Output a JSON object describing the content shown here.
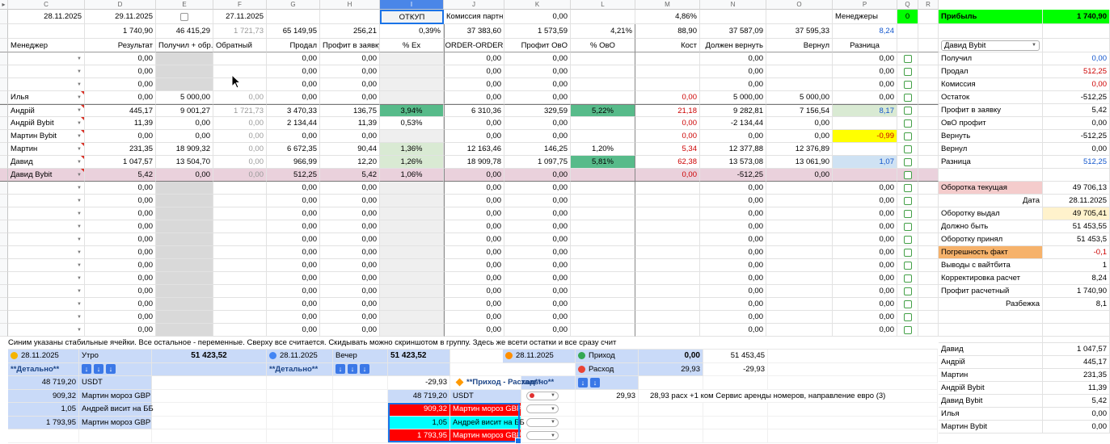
{
  "sheet": {
    "column_letters": [
      "C",
      "D",
      "E",
      "F",
      "G",
      "H",
      "I",
      "J",
      "K",
      "L",
      "M",
      "N",
      "O",
      "P",
      "Q",
      "R"
    ],
    "selected_column": "I",
    "colors": {
      "accent": "#1a73e8",
      "dark_green": "#57bb8a",
      "light_green": "#d9ead3",
      "bright_green": "#00ff00",
      "yellow": "#ffff00",
      "orange": "#f6b26b",
      "pink_row": "#ead1dc",
      "red_fill": "#ff0000",
      "cyan_fill": "#00ffff",
      "blue_fill": "#c9daf8"
    }
  },
  "grid": {
    "row_dates": {
      "c": "28.11.2025",
      "d": "29.11.2025",
      "f": "27.11.2025",
      "i": "ОТКУП",
      "j": "Комиссия партн",
      "k": "0,00",
      "m": "4,86%",
      "p": "Менеджеры",
      "q": "0"
    },
    "row_totals": [
      "1 740,90",
      "46 415,29",
      "1 721,73",
      "65 149,95",
      "256,21",
      "0,39%",
      "37 383,60",
      "1 573,59",
      "4,21%",
      "88,90",
      "37 587,09",
      "37 595,33",
      "8,24"
    ],
    "headers": [
      "Менеджер",
      "Результат",
      "Получил + обр.",
      "Обратный",
      "Продал",
      "Профит в заявку",
      "% Ex",
      "ORDER-ORDER",
      "Профит ОвО",
      "% ОвО",
      "Кост",
      "Должен вернуть",
      "Вернул",
      "Разница"
    ],
    "header_align": [
      "l",
      "r",
      "l",
      "l",
      "r",
      "l",
      "c",
      "c",
      "r",
      "c",
      "r",
      "r",
      "r",
      "c"
    ],
    "empty_row": {
      "name": "",
      "mark": false,
      "cls": "",
      "v": [
        "0,00",
        "",
        "",
        "0,00",
        "0,00",
        "",
        "0,00",
        "0,00",
        "",
        "",
        "0,00",
        "",
        "0,00"
      ],
      "s": [
        "",
        "egray",
        "",
        "",
        "",
        "igray",
        "",
        "",
        "",
        "",
        "",
        "",
        ""
      ]
    },
    "leading_empty_rows": 3,
    "trailing_empty_rows": 12,
    "rows": [
      {
        "name": "Илья",
        "mark": true,
        "cls": "",
        "v": [
          "0,00",
          "5 000,00",
          "0,00",
          "0,00",
          "0,00",
          "",
          "0,00",
          "0,00",
          "",
          "0,00",
          "5 000,00",
          "5 000,00",
          "0,00"
        ],
        "s": [
          "",
          "",
          "fgray",
          "",
          "",
          "igray",
          "",
          "",
          "",
          "mred",
          "",
          "",
          ""
        ]
      },
      {
        "name": "Андрій",
        "mark": true,
        "cls": "bt",
        "v": [
          "445,17",
          "9 001,27",
          "1 721,73",
          "3 470,33",
          "136,75",
          "3,94%",
          "6 310,36",
          "329,59",
          "5,22%",
          "21,18",
          "9 282,81",
          "7 156,54",
          "8,17"
        ],
        "s": [
          "",
          "",
          "fgray",
          "",
          "",
          "dkg",
          "",
          "",
          "dkg",
          "mred",
          "",
          "",
          "lg blue"
        ]
      },
      {
        "name": "Андрій Bybit",
        "mark": true,
        "cls": "",
        "v": [
          "11,39",
          "0,00",
          "0,00",
          "2 134,44",
          "11,39",
          "0,53%",
          "0,00",
          "0,00",
          "",
          "0,00",
          "-2 134,44",
          "0,00",
          ""
        ],
        "s": [
          "",
          "",
          "fgray",
          "",
          "",
          "",
          "",
          "",
          "",
          "mred",
          "",
          "",
          ""
        ]
      },
      {
        "name": "Мартин Bybit",
        "mark": true,
        "cls": "",
        "v": [
          "0,00",
          "0,00",
          "0,00",
          "0,00",
          "0,00",
          "",
          "0,00",
          "0,00",
          "",
          "0,00",
          "0,00",
          "0,00",
          "-0,99"
        ],
        "s": [
          "",
          "",
          "fgray",
          "",
          "",
          "igray",
          "",
          "",
          "",
          "mred",
          "",
          "",
          "yel redt"
        ]
      },
      {
        "name": "Мартин",
        "mark": true,
        "cls": "",
        "v": [
          "231,35",
          "18 909,32",
          "0,00",
          "6 672,35",
          "90,44",
          "1,36%",
          "12 163,46",
          "146,25",
          "1,20%",
          "5,34",
          "12 377,88",
          "12 376,89",
          ""
        ],
        "s": [
          "",
          "",
          "fgray",
          "",
          "",
          "lg",
          "",
          "",
          "",
          "mred",
          "",
          "",
          ""
        ]
      },
      {
        "name": "Давид",
        "mark": true,
        "cls": "",
        "v": [
          "1 047,57",
          "13 504,70",
          "0,00",
          "966,99",
          "12,20",
          "1,26%",
          "18 909,78",
          "1 097,75",
          "5,81%",
          "62,38",
          "13 573,08",
          "13 061,90",
          "1,07"
        ],
        "s": [
          "",
          "",
          "fgray",
          "",
          "",
          "lg",
          "",
          "",
          "dkg",
          "mred",
          "",
          "",
          "lb blue"
        ]
      },
      {
        "name": "Давид Bybit",
        "mark": true,
        "cls": "pinkrow bb",
        "v": [
          "5,42",
          "0,00",
          "0,00",
          "512,25",
          "5,42",
          "1,06%",
          "0,00",
          "0,00",
          "",
          "0,00",
          "-512,25",
          "0,00",
          ""
        ],
        "s": [
          "",
          "",
          "fgray",
          "",
          "",
          "",
          "",
          "",
          "",
          "mred",
          "",
          "",
          ""
        ]
      }
    ]
  },
  "panel": {
    "profit": {
      "label": "Прибыль",
      "value": "1 740,90"
    },
    "selector": {
      "value": "Давид Bybit"
    },
    "stats": [
      {
        "label": "Получил",
        "value": "0,00",
        "vs": "blue"
      },
      {
        "label": "Продал",
        "value": "512,25",
        "vs": "redt"
      },
      {
        "label": "Комиссия",
        "value": "0,00",
        "vs": "redt"
      },
      {
        "label": "Остаток",
        "value": "-512,25",
        "vs": ""
      },
      {
        "label": "Профит в заявку",
        "value": "5,42",
        "vs": ""
      },
      {
        "label": "ОвО профит",
        "value": "0,00",
        "vs": ""
      },
      {
        "label": "Вернуть",
        "value": "-512,25",
        "vs": ""
      },
      {
        "label": "Вернул",
        "value": "0,00",
        "vs": ""
      },
      {
        "label": "Разница",
        "value": "512,25",
        "vs": "blue"
      }
    ],
    "summary": [
      {
        "label": "Оборотка текущая",
        "value": "49 706,13",
        "ls": "pinkl",
        "vs": ""
      },
      {
        "label": "Дата",
        "value": "28.11.2025",
        "ls": "rightl",
        "vs": ""
      },
      {
        "label": "Оборотку выдал",
        "value": "49 705,41",
        "ls": "",
        "vs": "cream"
      },
      {
        "label": "Должно быть",
        "value": "51 453,55",
        "ls": "",
        "vs": ""
      },
      {
        "label": "Оборотку принял",
        "value": "51 453,5",
        "ls": "",
        "vs": ""
      },
      {
        "label": "Погрешность факт",
        "value": "-0,1",
        "ls": "orange",
        "vs": "yel redt"
      },
      {
        "label": "Выводы с вайтбита",
        "value": "1",
        "ls": "yel",
        "vs": ""
      },
      {
        "label": "Корректировка расчет",
        "value": "8,24",
        "ls": "yel",
        "vs": ""
      },
      {
        "label": "Профит расчетный",
        "value": "1 740,90",
        "ls": "yel",
        "vs": ""
      },
      {
        "label": "Разбежка",
        "value": "8,1",
        "ls": "rightl",
        "vs": ""
      }
    ],
    "managers": [
      {
        "label": "Давид",
        "value": "1 047,57"
      },
      {
        "label": "Андрій",
        "value": "445,17"
      },
      {
        "label": "Мартин",
        "value": "231,35"
      },
      {
        "label": "Андрій Bybit",
        "value": "11,39"
      },
      {
        "label": "Давид Bybit",
        "value": "5,42"
      },
      {
        "label": "Илья",
        "value": "0,00"
      },
      {
        "label": "Мартин Bybit",
        "value": "0,00"
      }
    ]
  },
  "note": "Синим указаны стабильные ячейки. Все остальное - переменные. Сверху все считается. Скидывать можно скриншотом в группу. Здесь же всети остатки и все сразу счит",
  "bottom": {
    "morning": {
      "date": "28.11.2025",
      "title": "Утро",
      "total": "51 423,52",
      "detail_label": "**Детально**",
      "arrow_count": 3,
      "items": [
        {
          "num": "48 719,20",
          "desc": "USDT"
        },
        {
          "num": "909,32",
          "desc": "Мартин мороз GBP"
        },
        {
          "num": "1,05",
          "desc": "Андрей висит на ББ"
        },
        {
          "num": "1 793,95",
          "desc": "Мартин мороз GBP"
        }
      ]
    },
    "evening": {
      "date": "28.11.2025",
      "title": "Вечер",
      "total": "51 423,52",
      "detail_label": "**Детально**",
      "arrow_count": 3,
      "flow_value": "-29,93",
      "flow_label": "**Приход - Расход**",
      "items": [
        {
          "num": "48 719,20",
          "desc": "USDT",
          "hl": ""
        },
        {
          "num": "909,32",
          "desc": "Мартин мороз GBP",
          "hl": "hlred"
        },
        {
          "num": "1,05",
          "desc": "Андрей висит на ББ",
          "hl": "hlcyan"
        },
        {
          "num": "1 793,95",
          "desc": "Мартин мороз GBP",
          "hl": "hlred"
        }
      ]
    },
    "flows": {
      "date": "28.11.2025",
      "income_label": "Приход",
      "income_value": "0,00",
      "income_total": "51 453,45",
      "expense_label": "Расход",
      "expense_value": "29,93",
      "expense_total": "-29,93",
      "detail_label": "**Детально**",
      "arrow_count": 2,
      "expense_row": {
        "num": "29,93",
        "desc": "28,93 расх +1 ком Сервис аренды номеров, направление евро (3)"
      },
      "extra_dropdown_rows": 3
    }
  }
}
